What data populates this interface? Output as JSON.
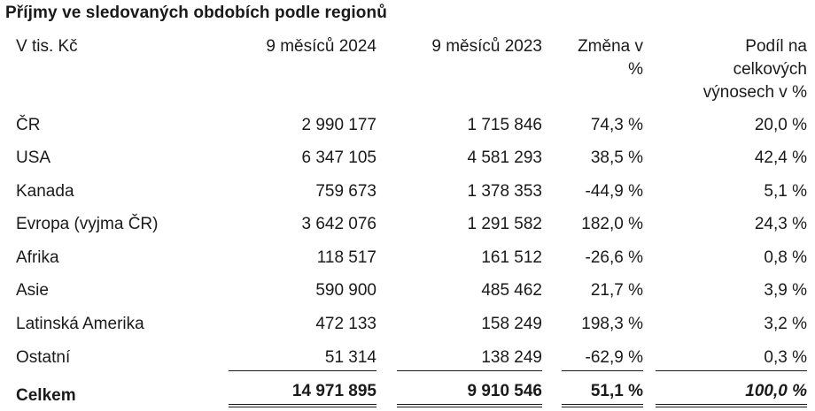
{
  "title": "Příjmy ve sledovaných obdobích podle regionů",
  "header": {
    "col0": "V tis. Kč",
    "col1": "9 měsíců 2024",
    "col2": "9 měsíců 2023",
    "col3_line1": "Změna v",
    "col3_line2": "%",
    "col4_line1": "Podíl na",
    "col4_line2": "celkových",
    "col4_line3": "výnosech v %"
  },
  "rows": [
    {
      "region": "ČR",
      "v2024": "2 990 177",
      "v2023": "1 715 846",
      "change": "74,3 %",
      "share": "20,0 %"
    },
    {
      "region": "USA",
      "v2024": "6 347 105",
      "v2023": "4 581 293",
      "change": "38,5 %",
      "share": "42,4 %"
    },
    {
      "region": "Kanada",
      "v2024": "759 673",
      "v2023": "1 378 353",
      "change": "-44,9 %",
      "share": "5,1 %"
    },
    {
      "region": "Evropa (vyjma ČR)",
      "v2024": "3 642 076",
      "v2023": "1 291 582",
      "change": "182,0 %",
      "share": "24,3 %"
    },
    {
      "region": "Afrika",
      "v2024": "118 517",
      "v2023": "161 512",
      "change": "-26,6 %",
      "share": "0,8 %"
    },
    {
      "region": "Asie",
      "v2024": "590 900",
      "v2023": "485 462",
      "change": "21,7 %",
      "share": "3,9 %"
    },
    {
      "region": "Latinská Amerika",
      "v2024": "472 133",
      "v2023": "158 249",
      "change": "198,3 %",
      "share": "3,2 %"
    },
    {
      "region": "Ostatní",
      "v2024": "51 314",
      "v2023": "138 249",
      "change": "-62,9 %",
      "share": "0,3 %"
    }
  ],
  "total": {
    "region": "Celkem",
    "v2024": "14 971 895",
    "v2023": "9 910 546",
    "change": "51,1 %",
    "share": "100,0 %"
  }
}
